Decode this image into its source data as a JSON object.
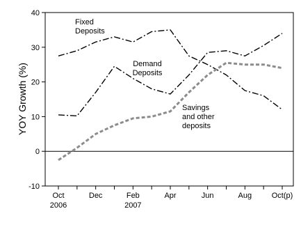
{
  "chart_data": {
    "type": "line",
    "title": "",
    "xlabel": "",
    "ylabel": "YOY Growth (%)",
    "ylim": [
      -10,
      40
    ],
    "yticks": [
      -10,
      0,
      10,
      20,
      30,
      40
    ],
    "x": [
      "Oct 2006",
      "Nov 2006",
      "Dec 2006",
      "Jan 2007",
      "Feb 2007",
      "Mar 2007",
      "Apr 2007",
      "May 2007",
      "Jun 2007",
      "Jul 2007",
      "Aug 2007",
      "Sep 2007",
      "Oct 2007 (p)"
    ],
    "x_tick_labels": [
      {
        "label": "Oct",
        "sublabel": "2006",
        "index": 0
      },
      {
        "label": "Dec",
        "sublabel": "",
        "index": 2
      },
      {
        "label": "Feb",
        "sublabel": "2007",
        "index": 4
      },
      {
        "label": "Apr",
        "sublabel": "",
        "index": 6
      },
      {
        "label": "Jun",
        "sublabel": "",
        "index": 8
      },
      {
        "label": "Aug",
        "sublabel": "",
        "index": 10
      },
      {
        "label": "Oct(p)",
        "sublabel": "",
        "index": 12
      }
    ],
    "grid": false,
    "series": [
      {
        "name": "Fixed Deposits",
        "color": "#000000",
        "style": "dashdot",
        "values": [
          27.5,
          29,
          31.5,
          33,
          31.5,
          34.5,
          35,
          27.5,
          25,
          22,
          17.5,
          16,
          12
        ]
      },
      {
        "name": "Demand Deposits",
        "color": "#000000",
        "style": "dashdot",
        "values": [
          10.5,
          10.2,
          17,
          24.5,
          21,
          18,
          16.5,
          22,
          28.5,
          29,
          27.5,
          30.5,
          34
        ]
      },
      {
        "name": "Savings and other deposits",
        "color": "#8c8c8c",
        "style": "dashed",
        "values": [
          -2.5,
          1,
          5,
          7.5,
          9.5,
          10,
          11.5,
          17,
          22,
          25.5,
          25,
          25,
          24
        ]
      }
    ],
    "annotations": [
      {
        "lines": [
          "Fixed",
          "Deposits"
        ],
        "series": 0
      },
      {
        "lines": [
          "Demand",
          "Deposits"
        ],
        "series": 1
      },
      {
        "lines": [
          "Savings",
          "and other",
          "deposits"
        ],
        "series": 2
      }
    ]
  }
}
